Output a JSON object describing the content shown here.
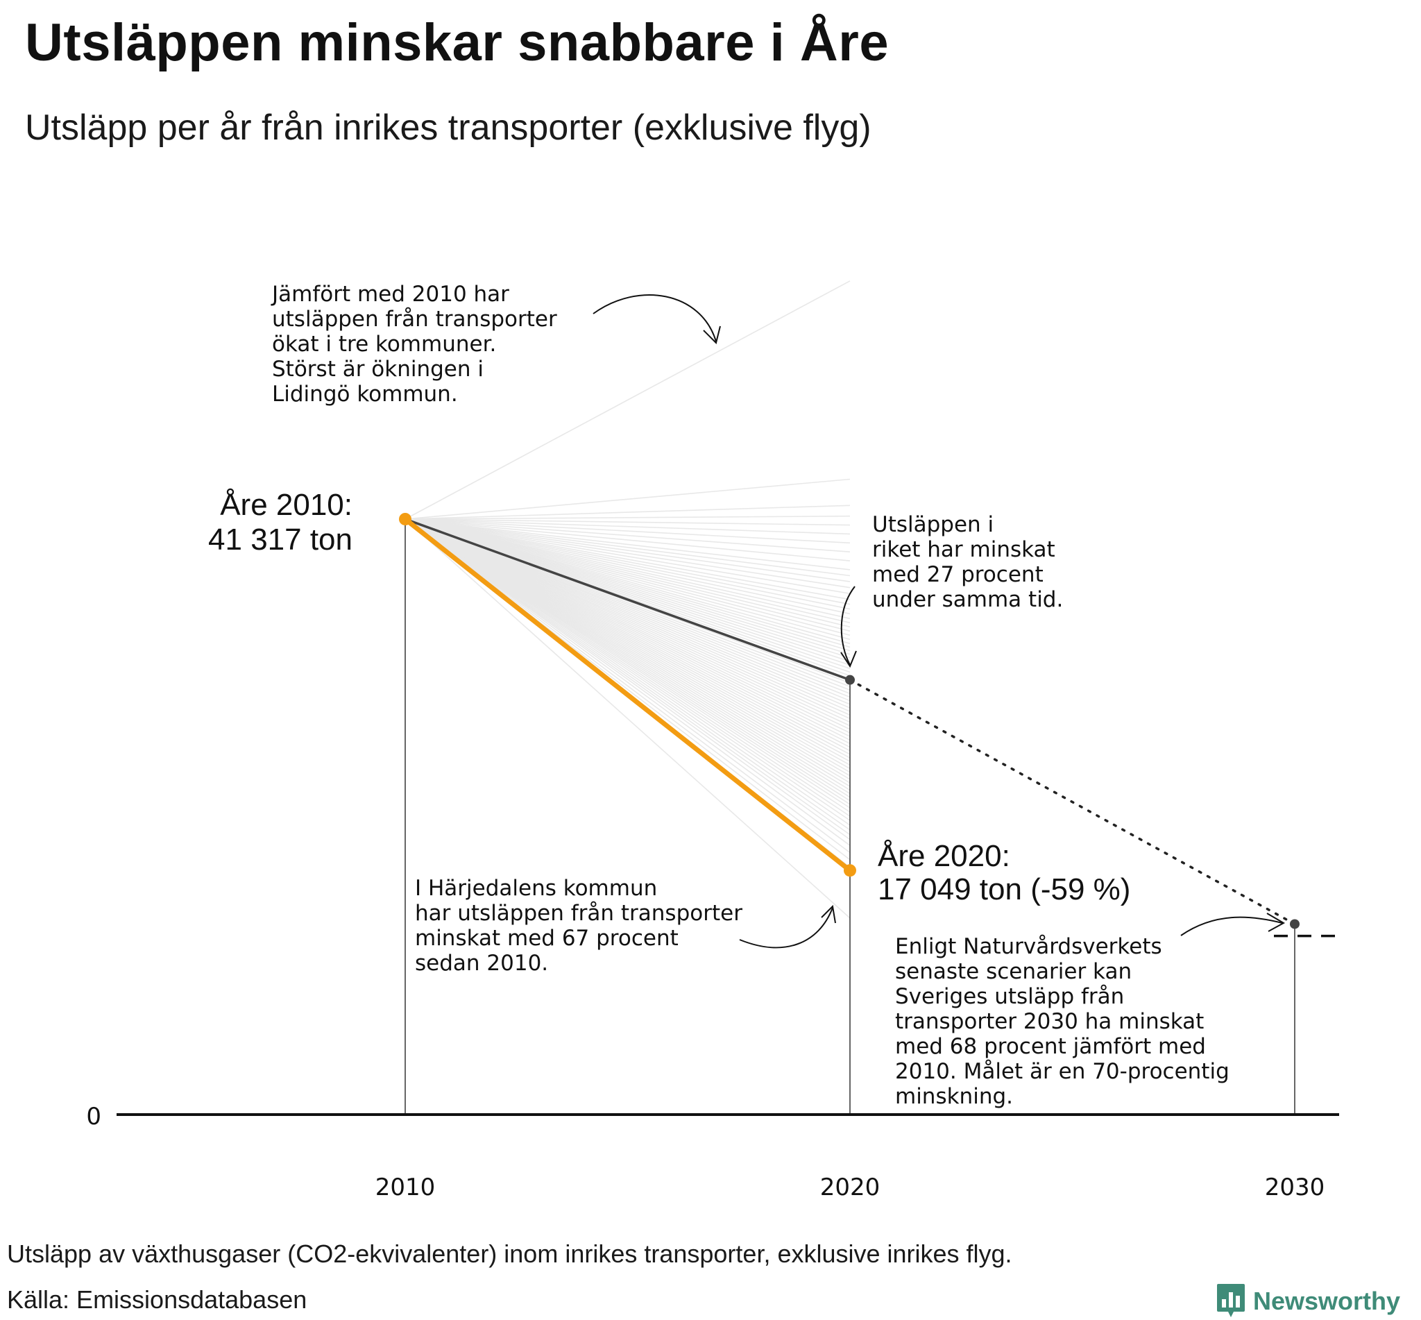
{
  "title": "Utsläppen minskar snabbare i Åre",
  "subtitle": "Utsläpp per år från inrikes transporter (exklusive flyg)",
  "footnote": "Utsläpp av växthusgaser (CO2-ekvivalenter) inom inrikes transporter, exklusive inrikes flyg.",
  "source": "Källa: Emissionsdatabasen",
  "logo": {
    "text": "Newsworthy",
    "icon": "bar-chart-icon",
    "color": "#3f8b78"
  },
  "colors": {
    "highlight": "#f39c12",
    "national": "#444444",
    "background_lines": "#e8e8e8",
    "axis": "#111111"
  },
  "chart_data": {
    "type": "line",
    "x_ticks": [
      "2010",
      "2020",
      "2030"
    ],
    "y_ticks": [
      "0"
    ],
    "grid": false,
    "series": [
      {
        "name": "Åre",
        "x": [
          2010,
          2020
        ],
        "relative": [
          1.0,
          0.41
        ],
        "values_ton": [
          41317,
          17049
        ]
      },
      {
        "x": [
          2010,
          2020,
          2030
        ],
        "relative": [
          1.0,
          0.73,
          0.32
        ]
      }
    ],
    "background_series_relative_2020": [
      1.4,
      1.067,
      1.023,
      1.005,
      0.99,
      0.975,
      0.96,
      0.945,
      0.93,
      0.915,
      0.905,
      0.895,
      0.885,
      0.875,
      0.865,
      0.857,
      0.849,
      0.841,
      0.833,
      0.826,
      0.819,
      0.812,
      0.805,
      0.798,
      0.791,
      0.785,
      0.779,
      0.773,
      0.767,
      0.761,
      0.755,
      0.749,
      0.743,
      0.737,
      0.731,
      0.725,
      0.719,
      0.713,
      0.707,
      0.701,
      0.695,
      0.689,
      0.683,
      0.677,
      0.671,
      0.665,
      0.659,
      0.653,
      0.647,
      0.641,
      0.635,
      0.629,
      0.623,
      0.617,
      0.611,
      0.605,
      0.599,
      0.593,
      0.587,
      0.581,
      0.575,
      0.569,
      0.563,
      0.557,
      0.551,
      0.545,
      0.539,
      0.533,
      0.527,
      0.521,
      0.515,
      0.508,
      0.501,
      0.494,
      0.486,
      0.478,
      0.47,
      0.462,
      0.452,
      0.44,
      0.428,
      0.415,
      0.33
    ],
    "target_2030_relative": 0.3,
    "annotations": {
      "are_2010": [
        "Åre 2010:",
        "41 317 ton"
      ],
      "are_2020": [
        "Åre 2020:",
        "17 049 ton (-59 %)"
      ],
      "increase": [
        "Jämfört med 2010 har",
        "utsläppen från transporter",
        "ökat i tre kommuner.",
        "Störst är ökningen i",
        "Lidingö kommun."
      ],
      "national": [
        "Utsläppen i",
        "riket har minskat",
        "med 27 procent",
        "under samma tid."
      ],
      "harjedalen": [
        "I Härjedalens kommun",
        "har utsläppen från transporter",
        "minskat med 67 procent",
        "sedan 2010."
      ],
      "target": [
        "Enligt Naturvårdsverkets",
        "senaste scenarier kan",
        "Sveriges utsläpp från",
        "transporter 2030 ha minskat",
        "med 68 procent jämfört med",
        "2010. Målet är en 70-procentig",
        "minskning."
      ]
    }
  }
}
